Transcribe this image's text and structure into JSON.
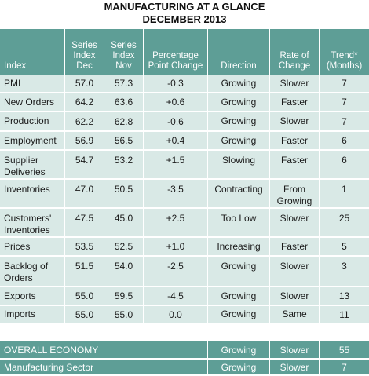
{
  "title_line1": "MANUFACTURING AT A GLANCE",
  "title_line2": "DECEMBER 2013",
  "headers": {
    "index": "Index",
    "series_dec": "Series Index Dec",
    "series_nov": "Series Index Nov",
    "pct_change": "Percentage Point Change",
    "direction": "Direction",
    "rate": "Rate of Change",
    "trend": "Trend* (Months)"
  },
  "rows": [
    {
      "index": "PMI",
      "dec": "57.0",
      "nov": "57.3",
      "change": "-0.3",
      "direction": "Growing",
      "rate": "Slower",
      "trend": "7"
    },
    {
      "index": "New Orders",
      "dec": "64.2",
      "nov": "63.6",
      "change": "+0.6",
      "direction": "Growing",
      "rate": "Faster",
      "trend": "7"
    },
    {
      "index": "Production",
      "dec": "62.2",
      "nov": "62.8",
      "change": "-0.6",
      "direction": "Growing",
      "rate": "Slower",
      "trend": "7"
    },
    {
      "index": "Employment",
      "dec": "56.9",
      "nov": "56.5",
      "change": "+0.4",
      "direction": "Growing",
      "rate": "Faster",
      "trend": "6"
    },
    {
      "index": "Supplier Deliveries",
      "dec": "54.7",
      "nov": "53.2",
      "change": "+1.5",
      "direction": "Slowing",
      "rate": "Faster",
      "trend": "6"
    },
    {
      "index": "Inventories",
      "dec": "47.0",
      "nov": "50.5",
      "change": "-3.5",
      "direction": "Contracting",
      "rate": "From Growing",
      "trend": "1"
    },
    {
      "index": "Customers' Inventories",
      "dec": "47.5",
      "nov": "45.0",
      "change": "+2.5",
      "direction": "Too Low",
      "rate": "Slower",
      "trend": "25"
    },
    {
      "index": "Prices",
      "dec": "53.5",
      "nov": "52.5",
      "change": "+1.0",
      "direction": "Increasing",
      "rate": "Faster",
      "trend": "5"
    },
    {
      "index": "Backlog of Orders",
      "dec": "51.5",
      "nov": "54.0",
      "change": "-2.5",
      "direction": "Growing",
      "rate": "Slower",
      "trend": "3"
    },
    {
      "index": "Exports",
      "dec": "55.0",
      "nov": "59.5",
      "change": "-4.5",
      "direction": "Growing",
      "rate": "Slower",
      "trend": "13"
    },
    {
      "index": "Imports",
      "dec": "55.0",
      "nov": "55.0",
      "change": "0.0",
      "direction": "Growing",
      "rate": "Same",
      "trend": "11"
    }
  ],
  "summary": [
    {
      "label": "OVERALL ECONOMY",
      "direction": "Growing",
      "rate": "Slower",
      "trend": "55"
    },
    {
      "label": "Manufacturing Sector",
      "direction": "Growing",
      "rate": "Slower",
      "trend": "7"
    }
  ],
  "colors": {
    "header_bg": "#5e9e96",
    "row_bg": "#d9e9e6",
    "text": "#1a1a1a"
  }
}
